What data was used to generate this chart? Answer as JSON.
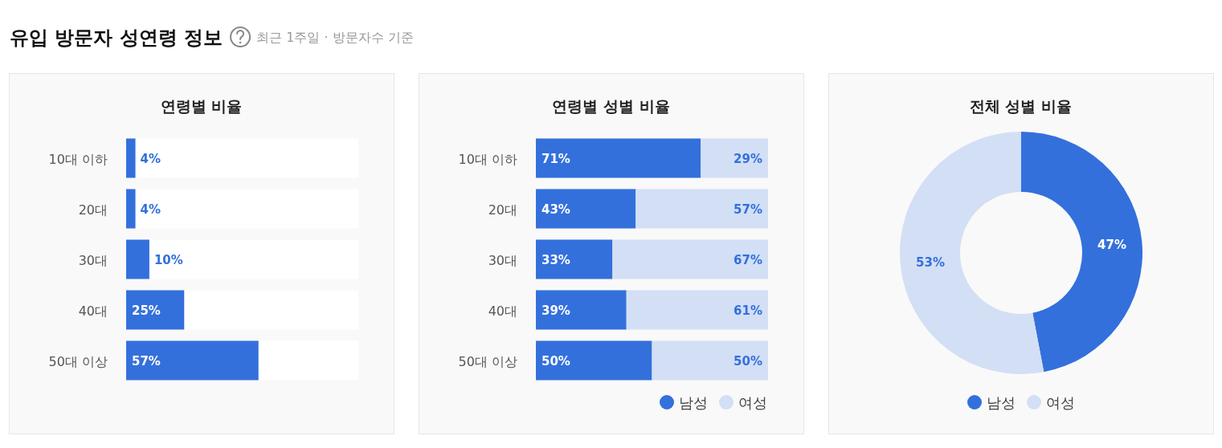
{
  "chart_data": [
    {
      "type": "other",
      "title": "유입 방문자 성연령 정보",
      "subtitle": "최근 1주일 · 방문자수 기준"
    },
    {
      "type": "bar",
      "orientation": "horizontal",
      "title": "연령별 비율",
      "categories": [
        "10대 이하",
        "20대",
        "30대",
        "40대",
        "50대 이상"
      ],
      "values": [
        4,
        4,
        10,
        25,
        57
      ],
      "value_labels": [
        "4%",
        "4%",
        "10%",
        "25%",
        "57%"
      ],
      "color": "#3370dc",
      "xlim": [
        0,
        100
      ]
    },
    {
      "type": "bar",
      "orientation": "horizontal",
      "stacked": true,
      "title": "연령별 성별 비율",
      "categories": [
        "10대 이하",
        "20대",
        "30대",
        "40대",
        "50대 이상"
      ],
      "xlim": [
        0,
        100
      ],
      "legend": "bottom right",
      "series": [
        {
          "name": "남성",
          "color": "#3370dc",
          "values": [
            71,
            43,
            33,
            39,
            50
          ],
          "value_labels": [
            "71%",
            "43%",
            "33%",
            "39%",
            "50%"
          ]
        },
        {
          "name": "여성",
          "color": "#d3dff5",
          "values": [
            29,
            57,
            67,
            61,
            50
          ],
          "value_labels": [
            "29%",
            "57%",
            "67%",
            "61%",
            "50%"
          ]
        }
      ]
    },
    {
      "type": "donut",
      "title": "전체 성별 비율",
      "categories": [
        "남성",
        "여성"
      ],
      "values": [
        47,
        53
      ],
      "colors": [
        "#3370dc",
        "#d3dff5"
      ],
      "value_labels": [
        "47%",
        "53%"
      ],
      "legend": "bottom"
    }
  ]
}
